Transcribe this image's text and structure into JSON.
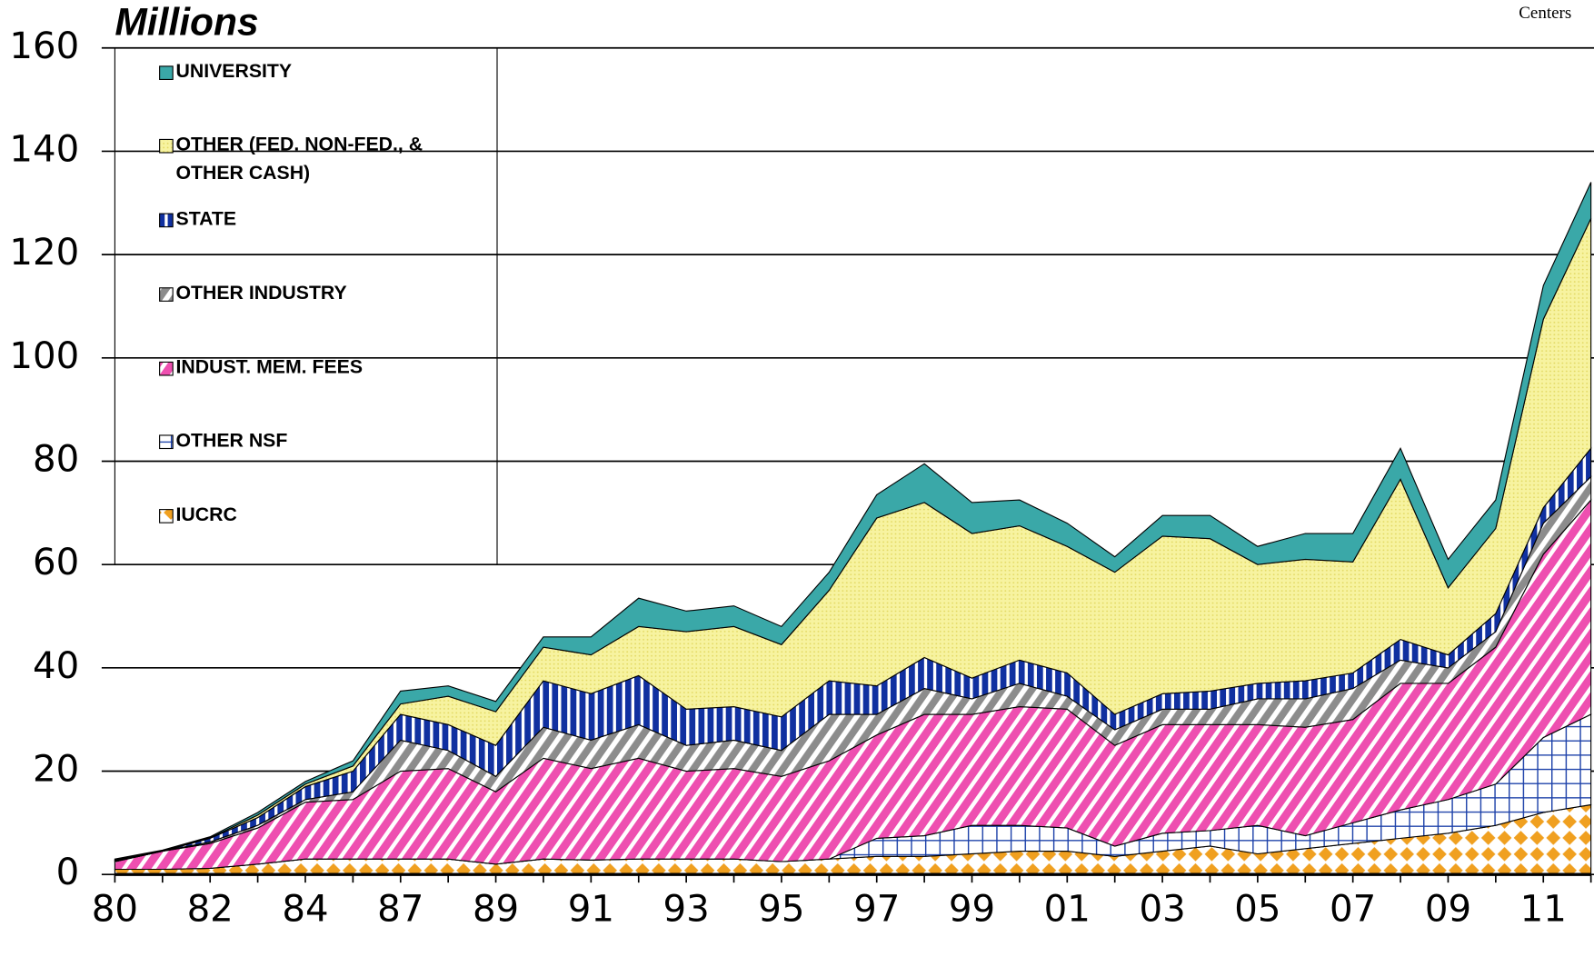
{
  "chart_data": {
    "type": "stacked-area",
    "y_axis_label": "Millions",
    "corner_text": "Centers",
    "categories": [
      "80",
      null,
      "82",
      null,
      "84",
      null,
      "87",
      null,
      "89",
      null,
      "91",
      null,
      "93",
      null,
      "95",
      null,
      "97",
      null,
      "99",
      null,
      "01",
      null,
      "03",
      null,
      "05",
      null,
      "07",
      null,
      "09",
      null,
      "11",
      null
    ],
    "ylim": [
      0,
      160
    ],
    "yticks": [
      0,
      20,
      40,
      60,
      80,
      100,
      120,
      140,
      160
    ],
    "grid": true,
    "series": [
      {
        "name": "IUCRC",
        "color": "#f0a020",
        "values": [
          1,
          1,
          1.2,
          2,
          3,
          3,
          3,
          3,
          2,
          3,
          2.8,
          3,
          3,
          3,
          2.5,
          3,
          3.5,
          3.5,
          4,
          4.5,
          4.5,
          3.5,
          4.5,
          5.5,
          4,
          5,
          6,
          7,
          8,
          9.5,
          12,
          13.5
        ]
      },
      {
        "name": "OTHER NSF",
        "color": "#1a3fa8",
        "values": [
          0,
          0,
          0,
          0,
          0,
          0,
          0,
          0,
          0,
          0,
          0,
          0,
          0,
          0,
          0,
          0,
          3.5,
          4,
          5.5,
          5,
          4.5,
          2,
          3.5,
          3,
          5.5,
          2.5,
          4,
          5.5,
          6.5,
          8,
          14.5,
          17.5
        ]
      },
      {
        "name": "INDUST. MEM. FEES",
        "color": "#ee4fb0",
        "values": [
          1.5,
          3.5,
          4.8,
          7,
          11,
          11.5,
          17,
          17.5,
          14,
          19.5,
          17.7,
          19.5,
          17,
          17.5,
          16.5,
          19,
          20,
          23.5,
          21.5,
          23,
          23,
          19.5,
          21,
          20.5,
          19.5,
          21,
          20,
          24.5,
          22.5,
          26.5,
          35.5,
          41.5
        ]
      },
      {
        "name": "OTHER INDUSTRY",
        "color": "#8c8c8c",
        "values": [
          0,
          0,
          0.3,
          0.5,
          0.5,
          1.5,
          6,
          3.5,
          3,
          6,
          5.5,
          6.5,
          5,
          5.5,
          5,
          9,
          4,
          5,
          3,
          4.5,
          2.5,
          3,
          3,
          3,
          5,
          5.5,
          6,
          4.5,
          3,
          3,
          6,
          4.5
        ]
      },
      {
        "name": "STATE",
        "color": "#1030a0",
        "values": [
          0.2,
          0,
          0.7,
          1.5,
          2.5,
          4,
          5,
          5,
          6,
          9,
          9,
          9.5,
          7,
          6.5,
          6.5,
          6.5,
          5.5,
          6,
          4,
          4.5,
          4.5,
          3,
          3,
          3.5,
          3,
          3.5,
          3,
          4,
          2.5,
          3.5,
          3,
          5.5
        ]
      },
      {
        "name": "OTHER (FED. NON-FED., & OTHER CASH)",
        "color": "#f7f3a0",
        "values": [
          0.1,
          0.1,
          0.1,
          0.5,
          0.5,
          1,
          2,
          5.5,
          6.5,
          6.5,
          7.5,
          9.5,
          15,
          15.5,
          14,
          17.5,
          32.5,
          30,
          28,
          26,
          24.5,
          27.5,
          30.5,
          29.5,
          23,
          23.5,
          21.5,
          31,
          13,
          16.5,
          36.5,
          44.5
        ]
      },
      {
        "name": "UNIVERSITY",
        "color": "#3aa8a8",
        "values": [
          0.2,
          0.1,
          0.2,
          0.5,
          0.5,
          1,
          2.5,
          2,
          2,
          2,
          3.5,
          5.5,
          4,
          4,
          3.5,
          3.5,
          4.5,
          7.5,
          6,
          5,
          4.5,
          3,
          4,
          4.5,
          3.5,
          5,
          5.5,
          6,
          5.5,
          5.5,
          6.5,
          7
        ]
      }
    ]
  }
}
